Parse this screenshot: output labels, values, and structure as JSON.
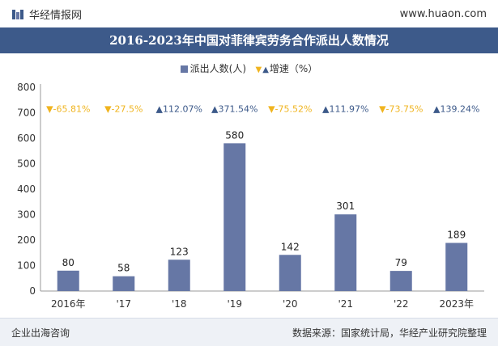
{
  "header": {
    "brand": "华经情报网",
    "site": "www.huaon.com"
  },
  "banner": {
    "title": "2016-2023年中国对菲律宾劳务合作派出人数情况"
  },
  "legend": {
    "bar_label": "派出人数(人)",
    "growth_label": "增速（%）"
  },
  "colors": {
    "bar": "#6677a5",
    "up": "#3d5a8a",
    "down": "#f0b41e",
    "banner": "#3d5a8a"
  },
  "chart_data": {
    "type": "bar",
    "categories": [
      "2016年",
      "'17",
      "'18",
      "'19",
      "'20",
      "'21",
      "'22",
      "2023年"
    ],
    "series": [
      {
        "name": "派出人数(人)",
        "values": [
          80,
          58,
          123,
          580,
          142,
          301,
          79,
          189
        ]
      }
    ],
    "growth": [
      {
        "text": "-65.81%",
        "dir": "down"
      },
      {
        "text": "-27.5%",
        "dir": "down"
      },
      {
        "text": "112.07%",
        "dir": "up"
      },
      {
        "text": "371.54%",
        "dir": "up"
      },
      {
        "text": "-75.52%",
        "dir": "down"
      },
      {
        "text": "111.97%",
        "dir": "up"
      },
      {
        "text": "-73.75%",
        "dir": "down"
      },
      {
        "text": "139.24%",
        "dir": "up"
      }
    ],
    "ylim": [
      0,
      800
    ],
    "yticks": [
      0,
      100,
      200,
      300,
      400,
      500,
      600,
      700,
      800
    ]
  },
  "footer": {
    "left": "企业出海咨询",
    "right": "数据来源：国家统计局，华经产业研究院整理"
  }
}
